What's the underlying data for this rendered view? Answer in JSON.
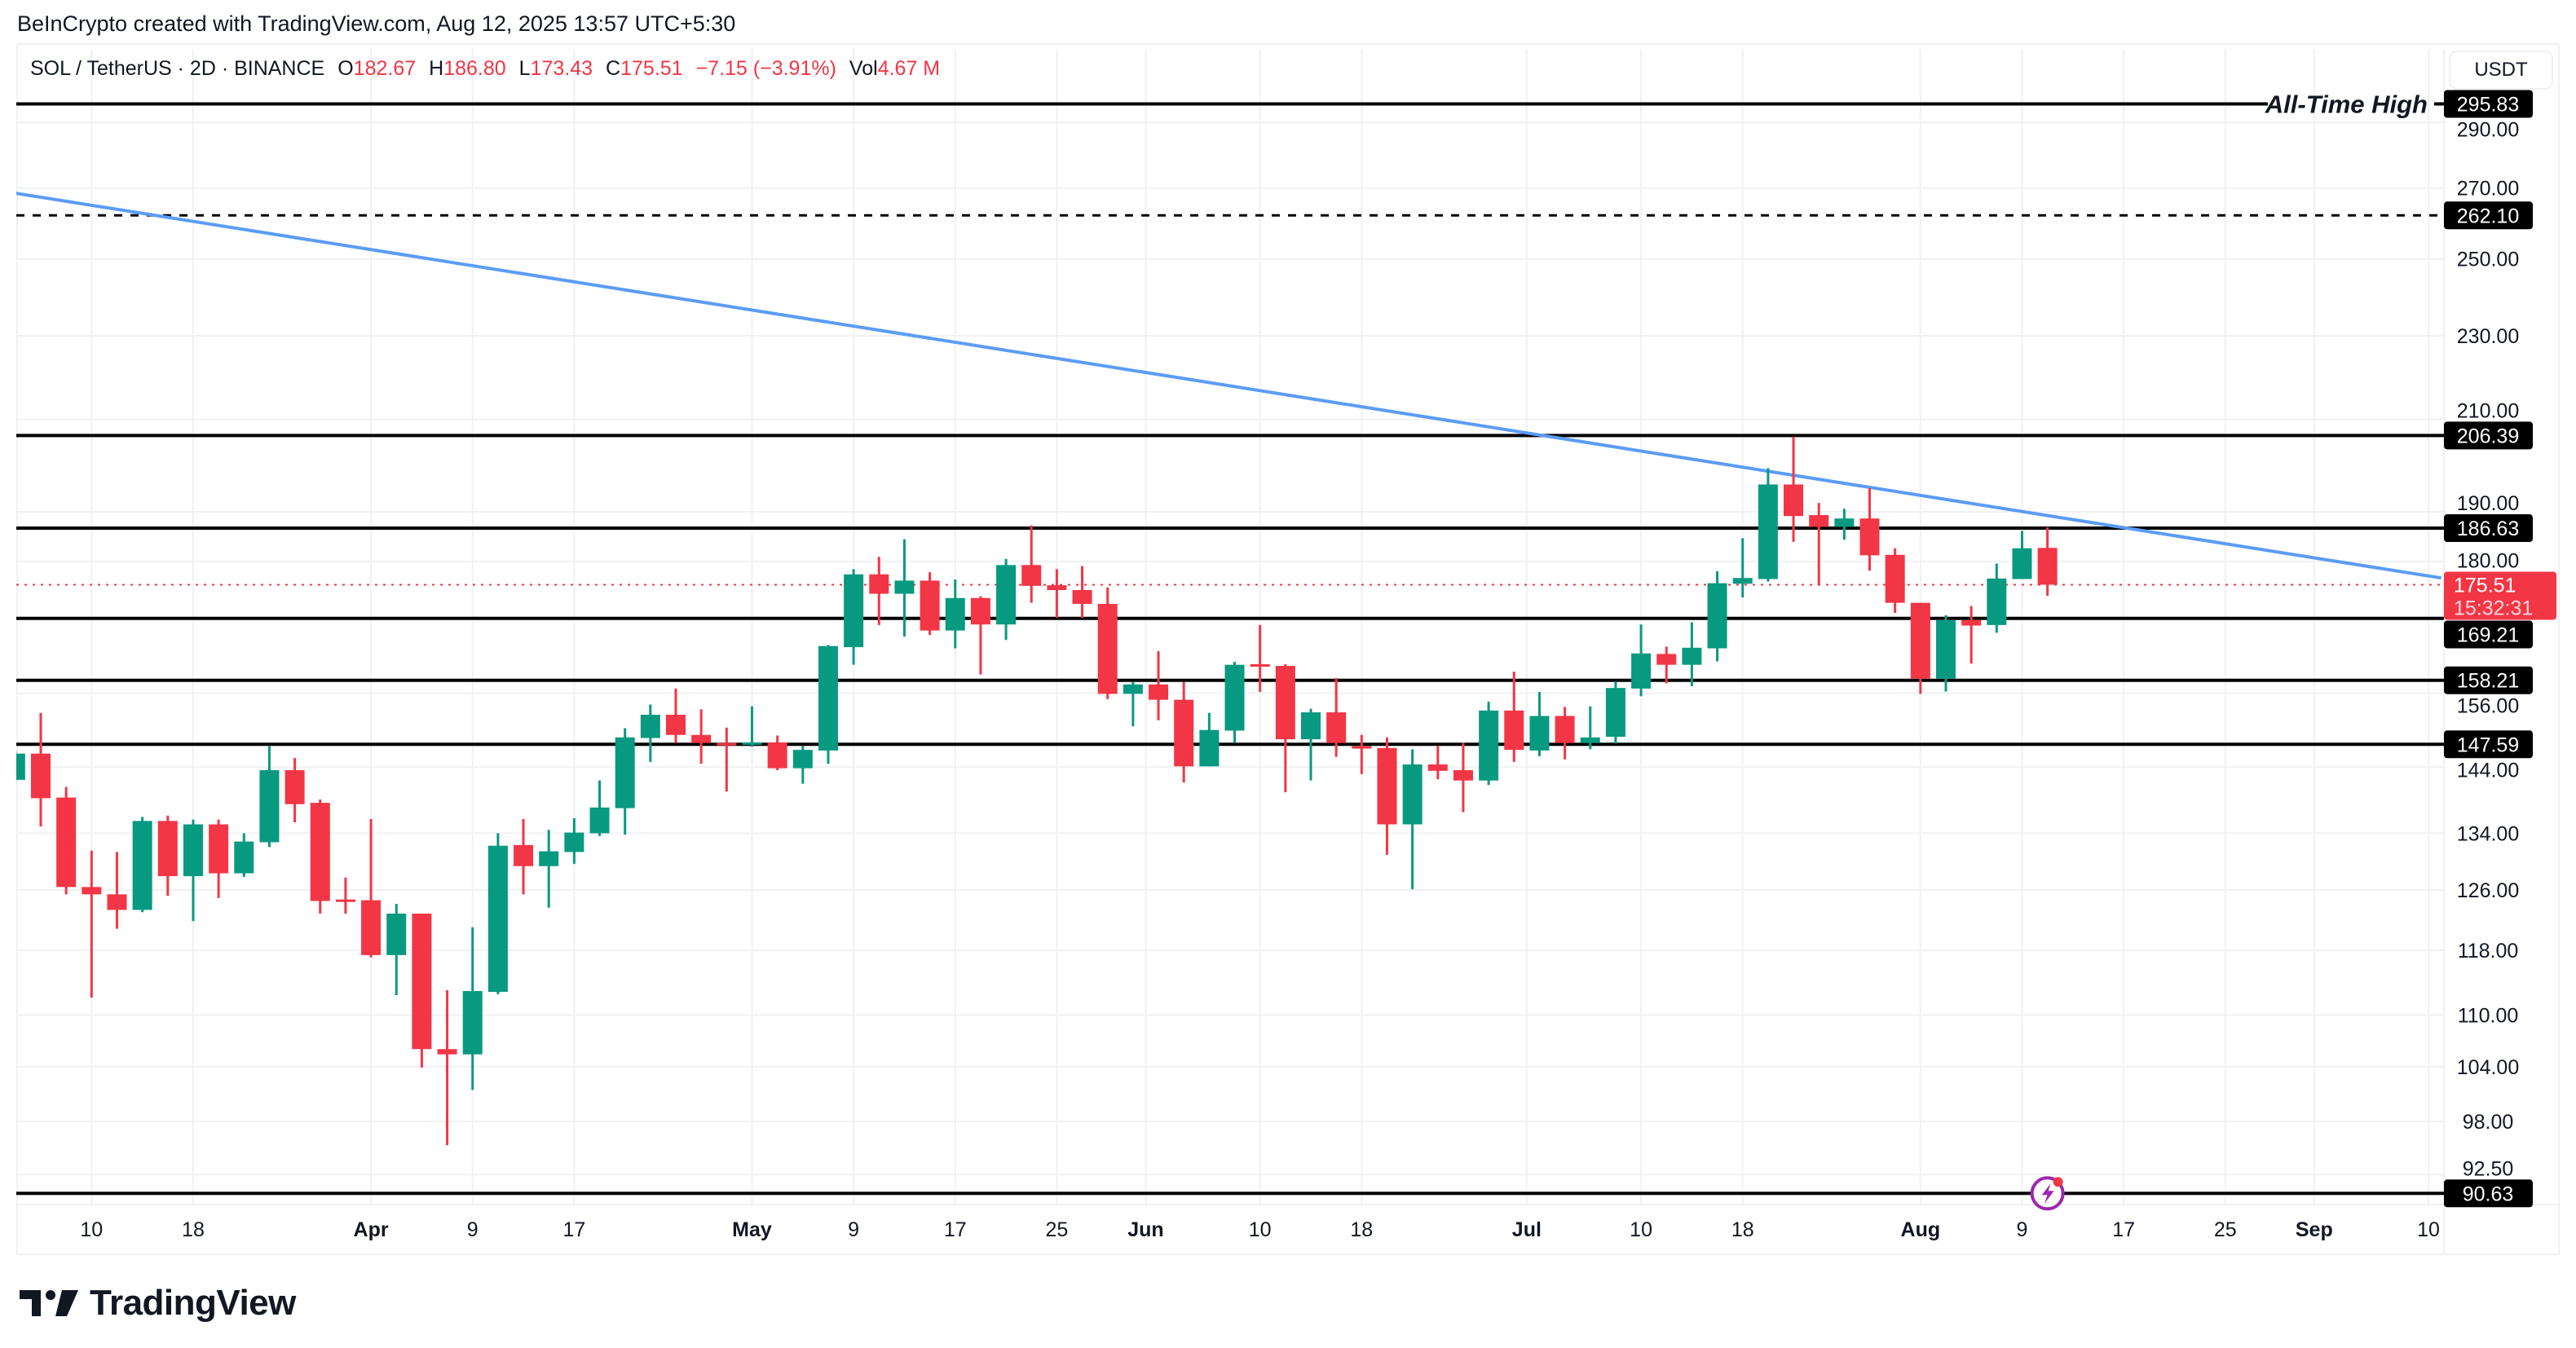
{
  "attribution": "BeInCrypto created with TradingView.com, Aug 12, 2025 13:57 UTC+5:30",
  "legend": {
    "symbol": "SOL / TetherUS · 2D · BINANCE",
    "open_label": "O",
    "open": "182.67",
    "high_label": "H",
    "high": "186.80",
    "low_label": "L",
    "low": "173.43",
    "close_label": "C",
    "close": "175.51",
    "change": "−7.15 (−3.91%)",
    "vol_label": "Vol",
    "vol": "4.67 M"
  },
  "currency_button": "USDT",
  "logo_text": "TradingView",
  "chart_data": {
    "type": "candlestick",
    "interval": "2D",
    "y_scale": "log",
    "ylim": [
      89,
      300
    ],
    "grid": true,
    "colors": {
      "up": "#089981",
      "down": "#F23645",
      "trendline": "#5B9CF6",
      "level": "#000000",
      "current_price": "#F23645",
      "event_icon": "#9C27B0"
    },
    "price_ticks": [
      "290.00",
      "270.00",
      "250.00",
      "230.00",
      "210.00",
      "190.00",
      "180.00",
      "156.00",
      "144.00",
      "134.00",
      "126.00",
      "118.00",
      "110.00",
      "104.00",
      "98.00",
      "92.50"
    ],
    "x_ticks": [
      {
        "label": "10",
        "date": "2025-03-10",
        "bold": false
      },
      {
        "label": "18",
        "date": "2025-03-18",
        "bold": false
      },
      {
        "label": "Apr",
        "date": "2025-04-01",
        "bold": true
      },
      {
        "label": "9",
        "date": "2025-04-09",
        "bold": false
      },
      {
        "label": "17",
        "date": "2025-04-17",
        "bold": false
      },
      {
        "label": "May",
        "date": "2025-05-01",
        "bold": true
      },
      {
        "label": "9",
        "date": "2025-05-09",
        "bold": false
      },
      {
        "label": "17",
        "date": "2025-05-17",
        "bold": false
      },
      {
        "label": "25",
        "date": "2025-05-25",
        "bold": false
      },
      {
        "label": "Jun",
        "date": "2025-06-01",
        "bold": true
      },
      {
        "label": "10",
        "date": "2025-06-10",
        "bold": false
      },
      {
        "label": "18",
        "date": "2025-06-18",
        "bold": false
      },
      {
        "label": "Jul",
        "date": "2025-07-01",
        "bold": true
      },
      {
        "label": "10",
        "date": "2025-07-10",
        "bold": false
      },
      {
        "label": "18",
        "date": "2025-07-18",
        "bold": false
      },
      {
        "label": "Aug",
        "date": "2025-08-01",
        "bold": true
      },
      {
        "label": "9",
        "date": "2025-08-09",
        "bold": false
      },
      {
        "label": "17",
        "date": "2025-08-17",
        "bold": false
      },
      {
        "label": "25",
        "date": "2025-08-25",
        "bold": false
      },
      {
        "label": "Sep",
        "date": "2025-09-01",
        "bold": true
      },
      {
        "label": "10",
        "date": "2025-09-10",
        "bold": false
      }
    ],
    "levels": [
      {
        "price": "295.83",
        "style": "solid",
        "annotation": "All-Time High"
      },
      {
        "price": "262.10",
        "style": "dashed"
      },
      {
        "price": "206.39",
        "style": "solid"
      },
      {
        "price": "186.63",
        "style": "solid"
      },
      {
        "price": "169.21",
        "style": "solid"
      },
      {
        "price": "158.21",
        "style": "solid"
      },
      {
        "price": "147.59",
        "style": "solid"
      },
      {
        "price": "90.63",
        "style": "solid"
      }
    ],
    "current_price": {
      "price": "175.51",
      "countdown": "15:32:31"
    },
    "trendline": {
      "from": [
        "2025-03-04",
        268.5
      ],
      "to": [
        "2025-09-11",
        176.8
      ]
    },
    "ohlc": [
      [
        "2025-03-04",
        142.0,
        146.5,
        141.8,
        146.1
      ],
      [
        "2025-03-06",
        146.1,
        152.7,
        135.0,
        139.2
      ],
      [
        "2025-03-08",
        139.3,
        140.9,
        125.4,
        126.4
      ],
      [
        "2025-03-10",
        126.4,
        131.5,
        112.1,
        125.4
      ],
      [
        "2025-03-12",
        125.4,
        131.3,
        120.8,
        123.3
      ],
      [
        "2025-03-14",
        123.3,
        136.4,
        123.0,
        135.8
      ],
      [
        "2025-03-16",
        135.8,
        136.6,
        125.2,
        127.9
      ],
      [
        "2025-03-18",
        127.9,
        136.0,
        121.8,
        135.3
      ],
      [
        "2025-03-20",
        135.3,
        136.0,
        124.9,
        128.3
      ],
      [
        "2025-03-22",
        128.3,
        134.0,
        127.8,
        132.8
      ],
      [
        "2025-03-24",
        132.7,
        147.3,
        132.0,
        143.5
      ],
      [
        "2025-03-26",
        143.5,
        145.4,
        135.6,
        138.3
      ],
      [
        "2025-03-28",
        138.5,
        139.0,
        122.8,
        124.5
      ],
      [
        "2025-03-30",
        124.7,
        127.7,
        122.8,
        124.6
      ],
      [
        "2025-04-01",
        124.6,
        136.1,
        117.1,
        117.4
      ],
      [
        "2025-04-03",
        117.4,
        124.1,
        112.4,
        122.8
      ],
      [
        "2025-04-05",
        122.8,
        122.8,
        103.9,
        106.0
      ],
      [
        "2025-04-07",
        106.0,
        113.0,
        95.5,
        105.4
      ],
      [
        "2025-04-09",
        105.4,
        121.0,
        101.4,
        112.9
      ],
      [
        "2025-04-11",
        112.8,
        134.0,
        112.5,
        132.2
      ],
      [
        "2025-04-13",
        132.3,
        136.1,
        125.4,
        129.3
      ],
      [
        "2025-04-15",
        129.3,
        134.5,
        123.6,
        131.4
      ],
      [
        "2025-04-17",
        131.3,
        136.2,
        129.6,
        134.1
      ],
      [
        "2025-04-19",
        134.0,
        141.9,
        133.6,
        137.8
      ],
      [
        "2025-04-21",
        137.7,
        150.2,
        133.8,
        148.7
      ],
      [
        "2025-04-23",
        148.6,
        154.1,
        144.8,
        152.4
      ],
      [
        "2025-04-25",
        152.4,
        156.8,
        147.8,
        149.1
      ],
      [
        "2025-04-27",
        149.1,
        153.3,
        144.5,
        147.8
      ],
      [
        "2025-04-29",
        147.8,
        150.3,
        140.2,
        147.6
      ],
      [
        "2025-05-01",
        147.7,
        153.8,
        147.2,
        147.9
      ],
      [
        "2025-05-03",
        147.9,
        149.0,
        143.5,
        143.8
      ],
      [
        "2025-05-05",
        143.8,
        147.3,
        141.4,
        146.7
      ],
      [
        "2025-05-07",
        146.6,
        164.4,
        144.5,
        164.2
      ],
      [
        "2025-05-09",
        164.0,
        178.5,
        160.9,
        177.5
      ],
      [
        "2025-05-11",
        177.5,
        180.9,
        168.0,
        173.8
      ],
      [
        "2025-05-13",
        173.8,
        184.4,
        165.9,
        176.3
      ],
      [
        "2025-05-15",
        176.3,
        177.9,
        166.2,
        167.0
      ],
      [
        "2025-05-17",
        167.0,
        176.5,
        163.8,
        173.0
      ],
      [
        "2025-05-19",
        173.0,
        173.3,
        159.2,
        168.1
      ],
      [
        "2025-05-21",
        168.1,
        180.5,
        165.3,
        179.3
      ],
      [
        "2025-05-23",
        179.3,
        187.2,
        172.1,
        175.3
      ],
      [
        "2025-05-25",
        175.4,
        178.5,
        169.3,
        174.5
      ],
      [
        "2025-05-27",
        174.5,
        179.1,
        169.3,
        171.9
      ],
      [
        "2025-05-29",
        171.9,
        175.0,
        155.0,
        155.9
      ],
      [
        "2025-05-31",
        155.9,
        157.9,
        150.5,
        157.5
      ],
      [
        "2025-06-02",
        157.5,
        163.3,
        151.5,
        154.9
      ],
      [
        "2025-06-04",
        154.9,
        157.9,
        141.6,
        144.1
      ],
      [
        "2025-06-06",
        144.1,
        152.7,
        144.1,
        149.9
      ],
      [
        "2025-06-08",
        149.8,
        161.4,
        147.8,
        160.9
      ],
      [
        "2025-06-10",
        161.0,
        168.0,
        156.2,
        160.9
      ],
      [
        "2025-06-12",
        160.7,
        161.0,
        140.1,
        148.4
      ],
      [
        "2025-06-14",
        148.4,
        153.4,
        141.9,
        152.8
      ],
      [
        "2025-06-16",
        152.8,
        158.6,
        145.6,
        147.8
      ],
      [
        "2025-06-18",
        147.3,
        149.1,
        142.9,
        146.9
      ],
      [
        "2025-06-20",
        147.0,
        148.7,
        130.9,
        135.3
      ],
      [
        "2025-06-22",
        135.3,
        146.8,
        126.1,
        144.4
      ],
      [
        "2025-06-24",
        144.4,
        147.3,
        142.1,
        143.4
      ],
      [
        "2025-06-26",
        143.5,
        147.8,
        137.1,
        141.9
      ],
      [
        "2025-06-28",
        141.9,
        154.6,
        141.2,
        153.1
      ],
      [
        "2025-06-30",
        153.1,
        159.7,
        144.8,
        146.7
      ],
      [
        "2025-07-02",
        146.6,
        156.2,
        145.7,
        152.2
      ],
      [
        "2025-07-04",
        152.2,
        153.7,
        145.2,
        147.8
      ],
      [
        "2025-07-06",
        147.8,
        153.8,
        146.8,
        148.7
      ],
      [
        "2025-07-08",
        148.8,
        158.0,
        147.7,
        156.9
      ],
      [
        "2025-07-10",
        156.8,
        168.1,
        155.5,
        162.9
      ],
      [
        "2025-07-12",
        162.8,
        164.1,
        157.7,
        160.9
      ],
      [
        "2025-07-14",
        160.9,
        168.5,
        157.2,
        163.9
      ],
      [
        "2025-07-16",
        163.8,
        178.1,
        161.5,
        175.8
      ],
      [
        "2025-07-18",
        175.7,
        184.6,
        173.1,
        176.8
      ],
      [
        "2025-07-20",
        176.6,
        199.2,
        176.1,
        195.7
      ],
      [
        "2025-07-22",
        195.7,
        206.1,
        183.9,
        189.1
      ],
      [
        "2025-07-24",
        189.3,
        191.8,
        175.4,
        186.9
      ],
      [
        "2025-07-26",
        186.9,
        190.6,
        184.3,
        188.6
      ],
      [
        "2025-07-28",
        188.6,
        194.9,
        178.2,
        181.2
      ],
      [
        "2025-07-30",
        181.3,
        182.6,
        170.2,
        172.1
      ],
      [
        "2025-08-01",
        172.1,
        172.1,
        155.9,
        158.5
      ],
      [
        "2025-08-03",
        158.5,
        169.8,
        156.3,
        168.9
      ],
      [
        "2025-08-05",
        168.9,
        171.5,
        161.1,
        167.9
      ],
      [
        "2025-08-07",
        168.0,
        179.6,
        166.6,
        176.7
      ],
      [
        "2025-08-09",
        176.6,
        186.1,
        176.6,
        182.6
      ],
      [
        "2025-08-11",
        182.67,
        186.8,
        173.43,
        175.51
      ]
    ]
  }
}
